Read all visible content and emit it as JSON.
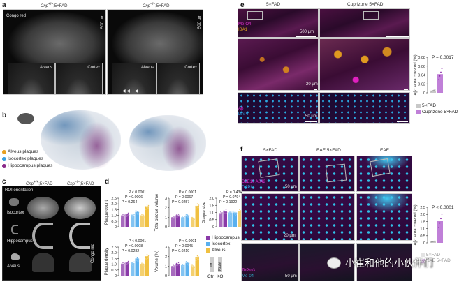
{
  "panel_labels": {
    "a": "a",
    "b": "b",
    "c": "c",
    "d": "d",
    "e": "e",
    "f": "f"
  },
  "panel_a": {
    "col_left_gene": "Cnp",
    "col_left_sup": "+/+",
    "col_left_rest": ";5×FAD",
    "col_right_gene": "Cnp",
    "col_right_sup": "−/−",
    "col_right_rest": ";5×FAD",
    "stain": "Congo red",
    "scale": "500 µm",
    "inset_left": "Alveus",
    "inset_right": "Cortex"
  },
  "panel_b": {
    "legend": [
      {
        "label": "Alveus plaques",
        "color": "#e8a020"
      },
      {
        "label": "Isocortex plaques",
        "color": "#3aa0e0"
      },
      {
        "label": "Hippocampus plaques",
        "color": "#8a2a8a"
      }
    ]
  },
  "panel_c": {
    "col_left_gene": "Cnp",
    "col_left_sup": "+/+",
    "col_left_rest": ";5×FAD",
    "col_right_gene": "Cnp",
    "col_right_sup": "−/−",
    "col_right_rest": ";5×FAD",
    "roi": "ROI orientation",
    "rows": [
      "Isocortex",
      "Hippocampus",
      "Alveus"
    ],
    "stain": "Congo red"
  },
  "panel_d": {
    "legend": [
      {
        "label": "Hippocampus",
        "color": "#8a3aa8"
      },
      {
        "label": "Isocortex",
        "color": "#5ab0ee"
      },
      {
        "label": "Alveus",
        "color": "#f0c040"
      }
    ],
    "key_left": "Left",
    "key_right": "Right",
    "key_ctrl": "Ctrl",
    "key_ko": "KO"
  },
  "panel_e": {
    "cols": [
      "5×FAD",
      "Cuprizone 5×FAD"
    ],
    "stain_top": [
      "Me-O4",
      "IBA1"
    ],
    "stain_bottom": [
      "Aβ",
      "DAPI"
    ],
    "scales": [
      "500 µm",
      "20 µm",
      "50 µm"
    ],
    "legend": [
      {
        "label": "5×FAD",
        "color": "#c8c8c8"
      },
      {
        "label": "Cuprizone 5×FAD",
        "color": "#c080d8"
      }
    ]
  },
  "panel_f": {
    "cols": [
      "5×FAD",
      "EAE 5×FAD",
      "EAE"
    ],
    "stain_top": [
      "D3E10 Aβ42",
      "DAPI"
    ],
    "stain_bottom": [
      "ToPro3",
      "Me-04"
    ],
    "scales": [
      "50 µm",
      "20 µm",
      "50 µm"
    ],
    "legend": [
      {
        "label": "5×FAD",
        "color": "#c8c8c8"
      },
      {
        "label": "EAE 5×FAD",
        "color": "#c080d8"
      }
    ]
  },
  "watermark": "小崔和他的小伙伴们",
  "chart_data": [
    {
      "id": "d-count",
      "type": "bar",
      "ylabel": "Plaque count",
      "ylim": [
        0,
        2.5
      ],
      "yticks": [
        "0",
        "0.5",
        "1.0",
        "1.5",
        "2.0",
        "2.5"
      ],
      "groups": [
        "Hippocampus",
        "Isocortex",
        "Alveus"
      ],
      "conditions": [
        "Ctrl",
        "KO"
      ],
      "values": [
        1.0,
        1.1,
        1.0,
        1.3,
        1.0,
        1.8
      ],
      "pvalues": [
        "P = 0.264",
        "P = 0.0006",
        "P < 0.0001"
      ]
    },
    {
      "id": "d-total",
      "type": "bar",
      "ylabel": "Total plaque volume",
      "ylim": [
        0,
        3
      ],
      "yticks": [
        "0",
        "1",
        "2",
        "3"
      ],
      "groups": [
        "Hippocampus",
        "Isocortex",
        "Alveus"
      ],
      "conditions": [
        "Ctrl",
        "KO"
      ],
      "values": [
        1.0,
        1.2,
        1.0,
        1.2,
        0.9,
        2.2
      ],
      "pvalues": [
        "P = 0.0257",
        "P = 0.0067",
        "P < 0.0001"
      ]
    },
    {
      "id": "d-size",
      "type": "bar",
      "ylabel": "Plaque size",
      "ylim": [
        0,
        2.0
      ],
      "yticks": [
        "0",
        "0.5",
        "1.0",
        "1.5",
        "2.0"
      ],
      "groups": [
        "Hippocampus",
        "Isocortex",
        "Alveus"
      ],
      "conditions": [
        "Ctrl",
        "KO"
      ],
      "values": [
        0.95,
        1.1,
        1.0,
        1.0,
        1.1,
        1.15
      ],
      "pvalues": [
        "P = 0.1922",
        "P = 0.0794",
        "P = 0.4345"
      ]
    },
    {
      "id": "d-density",
      "type": "bar",
      "ylabel": "Plaque density",
      "ylim": [
        0,
        2.5
      ],
      "yticks": [
        "0",
        "0.5",
        "1.0",
        "1.5",
        "2.0",
        "2.5"
      ],
      "groups": [
        "Hippocampus",
        "Isocortex",
        "Alveus"
      ],
      "conditions": [
        "Ctrl",
        "KO"
      ],
      "values": [
        1.05,
        1.15,
        1.1,
        1.5,
        1.0,
        1.7
      ],
      "pvalues": [
        "P = 0.0282",
        "P = 0.0008",
        "P < 0.0001"
      ]
    },
    {
      "id": "d-volpct",
      "type": "bar",
      "ylabel": "Volume (%)",
      "ylim": [
        0,
        3
      ],
      "yticks": [
        "0",
        "1",
        "2",
        "3"
      ],
      "groups": [
        "Hippocampus",
        "Isocortex",
        "Alveus"
      ],
      "conditions": [
        "Ctrl",
        "KO"
      ],
      "values": [
        1.0,
        1.25,
        1.1,
        1.35,
        1.0,
        1.9
      ],
      "pvalues": [
        "P = 0.0219",
        "P = 0.0045",
        "P < 0.0001"
      ]
    },
    {
      "id": "e-area",
      "type": "bar",
      "ylabel": "Aβ⁺ area covered (%)",
      "ylim": [
        0,
        0.08
      ],
      "yticks": [
        "0",
        "0.02",
        "0.04",
        "0.06",
        "0.08"
      ],
      "categories": [
        "5×FAD",
        "Cuprizone 5×FAD"
      ],
      "values": [
        0.005,
        0.042
      ],
      "pvalues": [
        "P = 0.0017"
      ]
    },
    {
      "id": "f-area",
      "type": "bar",
      "ylabel": "Aβ⁺ area covered (%)",
      "ylim": [
        0,
        2.5
      ],
      "yticks": [
        "0",
        "0.5",
        "1.0",
        "1.5",
        "2.0",
        "2.5"
      ],
      "categories": [
        "5×FAD",
        "EAE 5×FAD"
      ],
      "values": [
        0.1,
        1.55
      ],
      "pvalues": [
        "P < 0.0001"
      ]
    }
  ]
}
